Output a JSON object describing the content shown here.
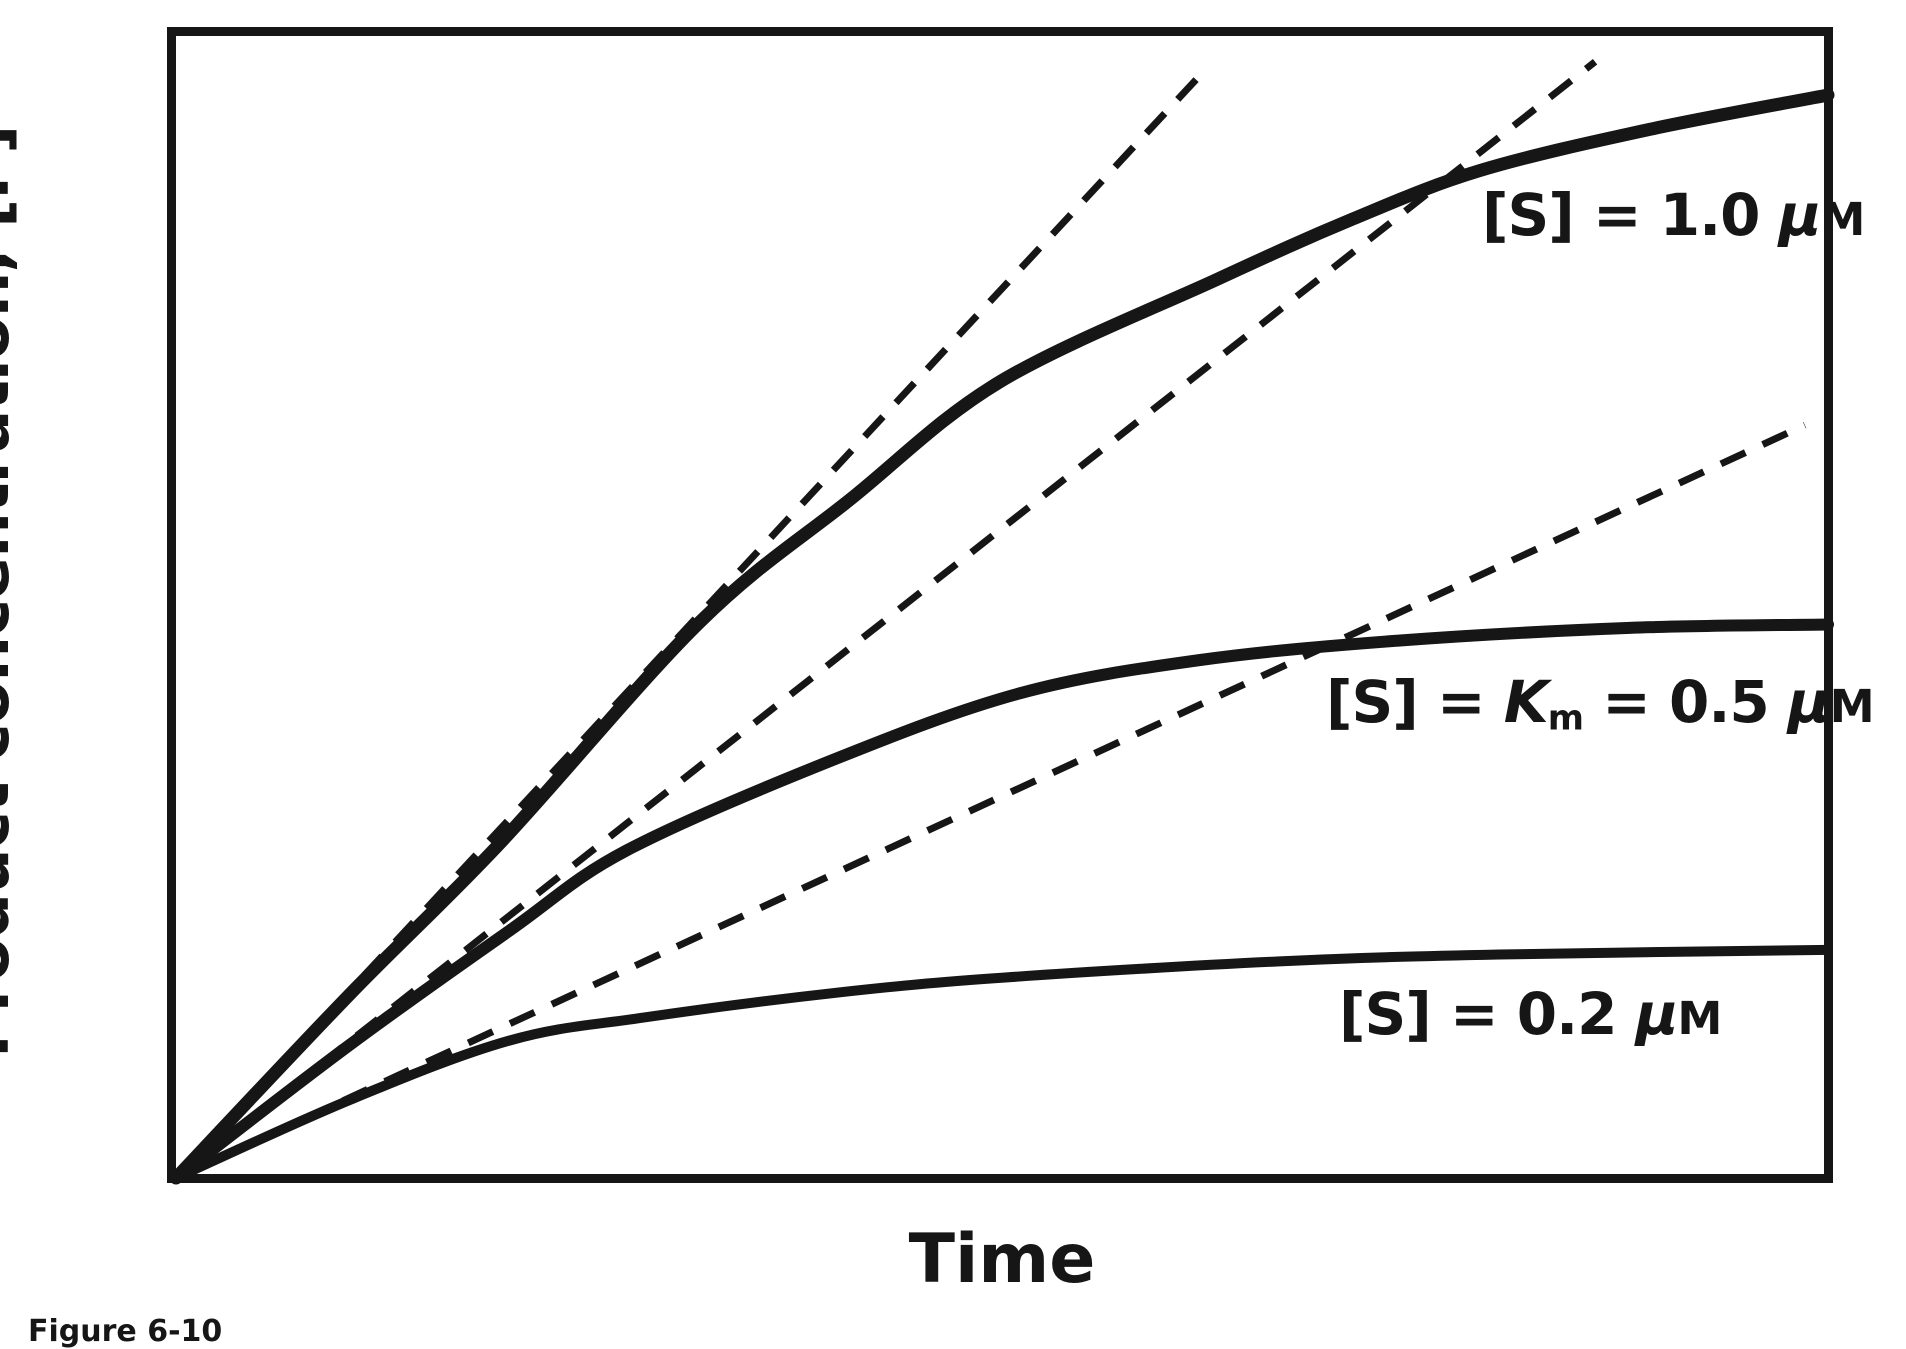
{
  "figure": {
    "caption": "Figure 6-10",
    "background_color": "#ffffff",
    "ink_color": "#161616"
  },
  "axis": {
    "x_label": "Time",
    "y_label": "Product concentration, [P]"
  },
  "labels": {
    "s1": {
      "pre": "[S] = 1.0 ",
      "mu": "μ",
      "unit": "M"
    },
    "s05": {
      "pre": "[S] = ",
      "k_symbol": "K",
      "k_sub": "m",
      "mid": " = 0.5 ",
      "mu": "μ",
      "unit": "M"
    },
    "s02": {
      "pre": "[S] = 0.2 ",
      "mu": "μ",
      "unit": "M"
    }
  },
  "chart_data": {
    "type": "line",
    "title": "",
    "xlabel": "Time",
    "ylabel": "Product concentration, [P]",
    "x_range": [
      0,
      10
    ],
    "y_range": [
      0,
      1
    ],
    "grid": false,
    "ticks": "none",
    "frame": "full box",
    "legend": "inline labels beside curves",
    "series": [
      {
        "name": "[S] = 1.0 μM",
        "line_style": "solid",
        "x": [
          0,
          1.05,
          1.96,
          3.17,
          4.08,
          4.99,
          6.3,
          7.11,
          7.89,
          8.92,
          10
        ],
        "y": [
          0,
          0.16,
          0.292,
          0.485,
          0.592,
          0.695,
          0.784,
          0.836,
          0.879,
          0.915,
          0.945
        ]
      },
      {
        "name": "[S] = Km = 0.5 μM",
        "line_style": "solid",
        "x": [
          0,
          1.05,
          2.02,
          2.73,
          3.98,
          5.11,
          6.2,
          7.41,
          8.8,
          10
        ],
        "y": [
          0,
          0.116,
          0.216,
          0.286,
          0.365,
          0.423,
          0.452,
          0.469,
          0.48,
          0.483
        ]
      },
      {
        "name": "[S] = 0.2 μM",
        "line_style": "solid",
        "x": [
          0,
          1.05,
          2.02,
          2.83,
          4.02,
          5.02,
          6.68,
          8.01,
          10
        ],
        "y": [
          0,
          0.068,
          0.12,
          0.14,
          0.162,
          0.175,
          0.189,
          0.195,
          0.199
        ]
      }
    ],
    "v0_tangents": [
      {
        "for_series": "[S] = 1.0 μM",
        "line_style": "dashed",
        "from": [
          0,
          0
        ],
        "to": [
          6.23,
          0.967
        ]
      },
      {
        "for_series": "[S] = Km = 0.5 μM",
        "line_style": "dashed",
        "from": [
          0,
          0
        ],
        "to": [
          8.59,
          0.974
        ]
      },
      {
        "for_series": "[S] = 0.2 μM",
        "line_style": "dashed",
        "from": [
          0,
          0
        ],
        "to": [
          9.86,
          0.657
        ]
      }
    ]
  }
}
